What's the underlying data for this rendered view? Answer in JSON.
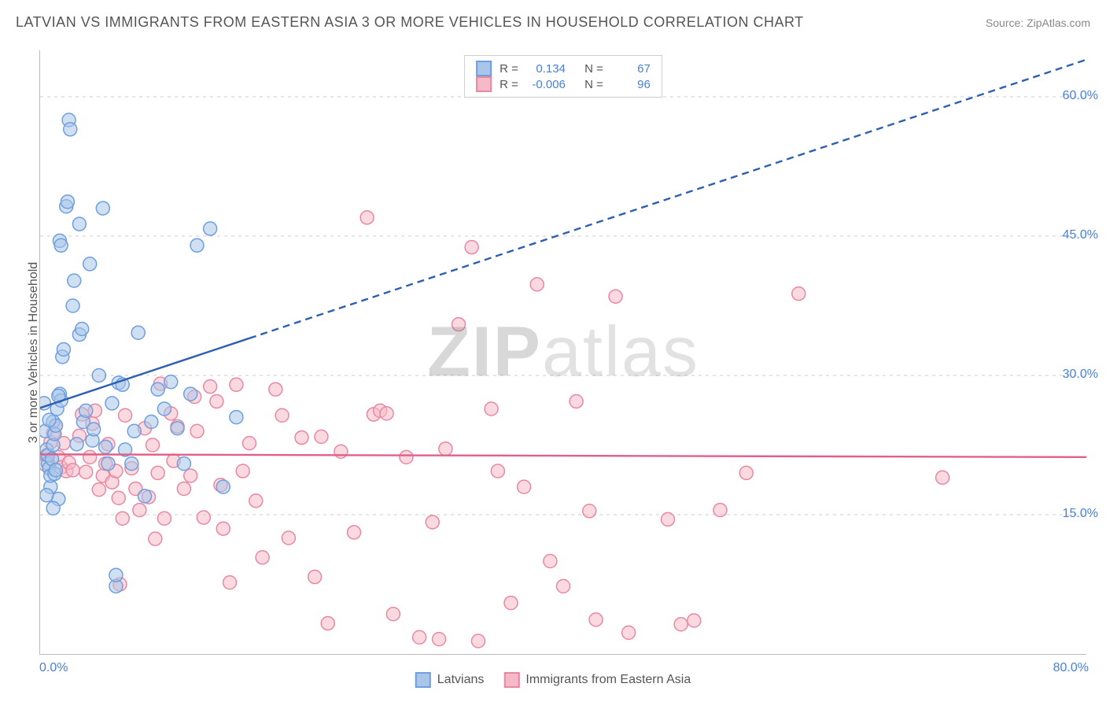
{
  "title": "LATVIAN VS IMMIGRANTS FROM EASTERN ASIA 3 OR MORE VEHICLES IN HOUSEHOLD CORRELATION CHART",
  "source": "Source: ZipAtlas.com",
  "y_axis_label": "3 or more Vehicles in Household",
  "watermark": {
    "bold": "ZIP",
    "light": "atlas"
  },
  "chart": {
    "type": "scatter",
    "xlim": [
      0,
      80
    ],
    "ylim": [
      0,
      65
    ],
    "x_ticks": [
      {
        "value": 0,
        "label": "0.0%"
      },
      {
        "value": 80,
        "label": "80.0%"
      }
    ],
    "y_ticks": [
      {
        "value": 15,
        "label": "15.0%"
      },
      {
        "value": 30,
        "label": "30.0%"
      },
      {
        "value": 45,
        "label": "45.0%"
      },
      {
        "value": 60,
        "label": "60.0%"
      }
    ],
    "grid_color": "#cccccc",
    "grid_dash": "4,5",
    "background_color": "#ffffff",
    "marker_radius": 8.5,
    "marker_stroke_width": 1.5,
    "series": [
      {
        "name": "Latvians",
        "fill": "#a9c6ea",
        "stroke": "#6f9fde",
        "fill_opacity": 0.55,
        "R": "0.134",
        "N": "67",
        "trend": {
          "x1": 0,
          "y1": 26.5,
          "x2": 80,
          "y2": 64,
          "solid_until_x": 16,
          "color": "#2f5fb0",
          "width": 2.4,
          "dash": "9,6"
        },
        "points": [
          [
            0.3,
            27
          ],
          [
            0.4,
            24
          ],
          [
            0.5,
            22
          ],
          [
            0.6,
            20.5
          ],
          [
            0.6,
            21.4
          ],
          [
            0.7,
            20
          ],
          [
            0.8,
            18
          ],
          [
            0.8,
            19.2
          ],
          [
            0.9,
            21
          ],
          [
            1.0,
            22.5
          ],
          [
            1.0,
            25
          ],
          [
            1.1,
            23.7
          ],
          [
            1.1,
            19.4
          ],
          [
            1.2,
            24.6
          ],
          [
            1.3,
            26.4
          ],
          [
            1.4,
            16.7
          ],
          [
            1.5,
            28
          ],
          [
            1.6,
            27.3
          ],
          [
            1.7,
            32
          ],
          [
            1.8,
            32.8
          ],
          [
            1.5,
            44.5
          ],
          [
            1.6,
            44
          ],
          [
            2.0,
            48.2
          ],
          [
            2.1,
            48.7
          ],
          [
            2.2,
            57.5
          ],
          [
            2.3,
            56.5
          ],
          [
            2.5,
            37.5
          ],
          [
            2.6,
            40.2
          ],
          [
            3.0,
            34.4
          ],
          [
            3.2,
            35
          ],
          [
            3.0,
            46.3
          ],
          [
            3.3,
            25
          ],
          [
            3.5,
            26.2
          ],
          [
            4.0,
            23
          ],
          [
            4.1,
            24.2
          ],
          [
            4.5,
            30
          ],
          [
            4.8,
            48
          ],
          [
            5.0,
            22.3
          ],
          [
            5.2,
            20.5
          ],
          [
            5.5,
            27
          ],
          [
            6.0,
            29.2
          ],
          [
            6.3,
            29
          ],
          [
            6.5,
            22
          ],
          [
            7.0,
            20.5
          ],
          [
            7.2,
            24
          ],
          [
            7.5,
            34.6
          ],
          [
            8.0,
            17
          ],
          [
            8.5,
            25
          ],
          [
            9.0,
            28.5
          ],
          [
            9.5,
            26.4
          ],
          [
            10,
            29.3
          ],
          [
            10.5,
            24.3
          ],
          [
            11,
            20.5
          ],
          [
            11.5,
            28
          ],
          [
            12,
            44
          ],
          [
            13,
            45.8
          ],
          [
            14,
            18
          ],
          [
            15,
            25.5
          ],
          [
            5.8,
            7.3
          ],
          [
            5.8,
            8.5
          ],
          [
            1.0,
            15.7
          ],
          [
            0.5,
            17.1
          ],
          [
            0.7,
            25.2
          ],
          [
            1.2,
            19.8
          ],
          [
            1.4,
            27.8
          ],
          [
            3.8,
            42
          ],
          [
            2.8,
            22.6
          ]
        ]
      },
      {
        "name": "Immigrants from Eastern Asia",
        "fill": "#f5b9c8",
        "stroke": "#e889a3",
        "fill_opacity": 0.55,
        "R": "-0.006",
        "N": "96",
        "trend": {
          "x1": 0,
          "y1": 21.5,
          "x2": 80,
          "y2": 21.2,
          "solid_until_x": 80,
          "color": "#e06089",
          "width": 2.4,
          "dash": ""
        },
        "points": [
          [
            0.4,
            20.4
          ],
          [
            0.5,
            21.4
          ],
          [
            0.8,
            22.8
          ],
          [
            1.0,
            23.8
          ],
          [
            1.2,
            24.6
          ],
          [
            1.4,
            21.2
          ],
          [
            1.6,
            20.1
          ],
          [
            1.8,
            22.7
          ],
          [
            2.0,
            19.7
          ],
          [
            2.2,
            20.6
          ],
          [
            2.5,
            19.8
          ],
          [
            3.0,
            23.5
          ],
          [
            3.2,
            25.8
          ],
          [
            3.5,
            19.6
          ],
          [
            3.8,
            21.2
          ],
          [
            4.0,
            24.8
          ],
          [
            4.2,
            26.2
          ],
          [
            4.5,
            17.7
          ],
          [
            4.8,
            19.2
          ],
          [
            5.0,
            20.5
          ],
          [
            5.2,
            22.6
          ],
          [
            5.5,
            18.5
          ],
          [
            5.8,
            19.7
          ],
          [
            6.0,
            16.8
          ],
          [
            6.3,
            14.6
          ],
          [
            6.5,
            25.7
          ],
          [
            7.0,
            20
          ],
          [
            7.3,
            17.8
          ],
          [
            7.6,
            15.5
          ],
          [
            8.0,
            24.3
          ],
          [
            8.3,
            16.9
          ],
          [
            8.6,
            22.5
          ],
          [
            9.0,
            19.5
          ],
          [
            9.5,
            14.6
          ],
          [
            10,
            25.9
          ],
          [
            10.5,
            24.5
          ],
          [
            11,
            17.8
          ],
          [
            11.5,
            19.2
          ],
          [
            12,
            24
          ],
          [
            12.5,
            14.7
          ],
          [
            13,
            28.8
          ],
          [
            13.5,
            27.2
          ],
          [
            14,
            13.5
          ],
          [
            14.5,
            7.7
          ],
          [
            15,
            29
          ],
          [
            15.5,
            19.7
          ],
          [
            16,
            22.7
          ],
          [
            17,
            10.4
          ],
          [
            18,
            28.5
          ],
          [
            19,
            12.5
          ],
          [
            20,
            23.3
          ],
          [
            21,
            8.3
          ],
          [
            22,
            3.3
          ],
          [
            23,
            21.8
          ],
          [
            24,
            13.1
          ],
          [
            25,
            47
          ],
          [
            25.5,
            25.8
          ],
          [
            26,
            26.2
          ],
          [
            26.5,
            25.9
          ],
          [
            27,
            4.3
          ],
          [
            28,
            21.2
          ],
          [
            29,
            1.8
          ],
          [
            30,
            14.2
          ],
          [
            30.5,
            1.6
          ],
          [
            31,
            22.1
          ],
          [
            32,
            35.5
          ],
          [
            33,
            43.8
          ],
          [
            33.5,
            1.4
          ],
          [
            34.5,
            26.4
          ],
          [
            35,
            19.7
          ],
          [
            36,
            5.5
          ],
          [
            37,
            18
          ],
          [
            38,
            39.8
          ],
          [
            39,
            10
          ],
          [
            40,
            7.3
          ],
          [
            41,
            27.2
          ],
          [
            42,
            15.4
          ],
          [
            42.5,
            3.7
          ],
          [
            44,
            38.5
          ],
          [
            45,
            2.3
          ],
          [
            48,
            14.5
          ],
          [
            49,
            3.2
          ],
          [
            50,
            3.6
          ],
          [
            52,
            15.5
          ],
          [
            54,
            19.5
          ],
          [
            58,
            38.8
          ],
          [
            69,
            19
          ],
          [
            6.1,
            7.5
          ],
          [
            8.8,
            12.4
          ],
          [
            9.2,
            29.1
          ],
          [
            10.2,
            20.8
          ],
          [
            11.8,
            27.7
          ],
          [
            13.8,
            18.2
          ],
          [
            16.5,
            16.5
          ],
          [
            18.5,
            25.7
          ],
          [
            21.5,
            23.4
          ]
        ]
      }
    ]
  },
  "legend_top_labels": {
    "R": "R =",
    "N": "N ="
  },
  "legend_bottom": [
    {
      "label": "Latvians",
      "series_index": 0
    },
    {
      "label": "Immigrants from Eastern Asia",
      "series_index": 1
    }
  ]
}
